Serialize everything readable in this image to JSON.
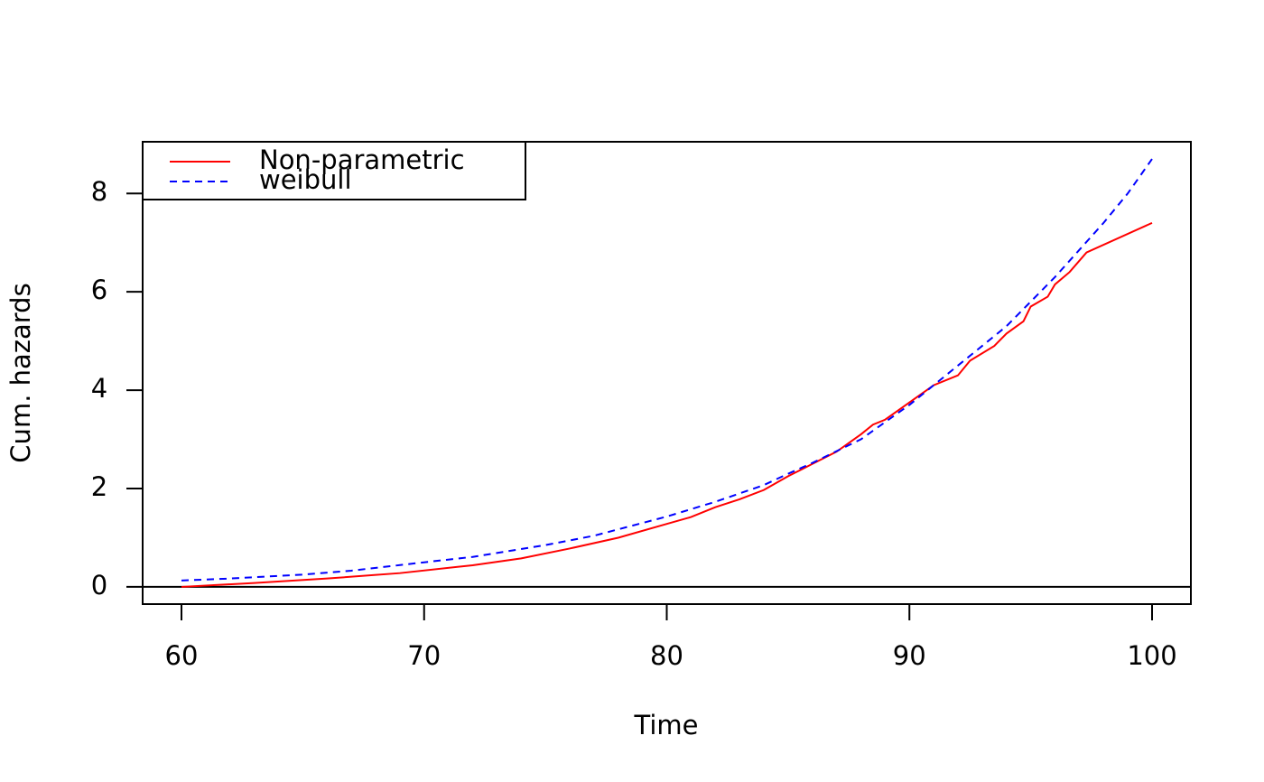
{
  "chart_data": {
    "type": "line",
    "xlabel": "Time",
    "ylabel": "Cum. hazards",
    "xlim": [
      58.4,
      101.6
    ],
    "ylim": [
      -0.35,
      9.05
    ],
    "xticks": [
      60,
      70,
      80,
      90,
      100
    ],
    "yticks": [
      0,
      2,
      4,
      6,
      8
    ],
    "hline": 0,
    "legend": "topleft",
    "series": [
      {
        "name": "Non-parametric",
        "color": "#ff0000",
        "linestyle": "solid",
        "x": [
          60,
          63,
          66,
          69,
          72,
          74,
          76,
          78,
          80,
          81,
          82,
          83,
          84,
          85,
          86,
          87,
          88,
          88.5,
          89,
          90,
          91,
          92,
          92.5,
          93.5,
          94,
          94.7,
          95,
          95.7,
          96,
          96.6,
          97.3,
          100
        ],
        "values": [
          0,
          0.08,
          0.17,
          0.28,
          0.44,
          0.58,
          0.78,
          1.0,
          1.28,
          1.42,
          1.62,
          1.78,
          1.97,
          2.25,
          2.5,
          2.75,
          3.1,
          3.3,
          3.4,
          3.75,
          4.1,
          4.3,
          4.6,
          4.9,
          5.15,
          5.4,
          5.7,
          5.9,
          6.15,
          6.4,
          6.8,
          7.4
        ]
      },
      {
        "name": "weibull",
        "color": "#0000ff",
        "linestyle": "dashed",
        "x": [
          60,
          62,
          65,
          67,
          70,
          72,
          75,
          77,
          80,
          82,
          84,
          85,
          86,
          88,
          90,
          92,
          93,
          94,
          95,
          96,
          97,
          98,
          99,
          100
        ],
        "values": [
          0.13,
          0.17,
          0.25,
          0.33,
          0.5,
          0.61,
          0.85,
          1.04,
          1.43,
          1.73,
          2.07,
          2.3,
          2.52,
          3.0,
          3.7,
          4.5,
          4.9,
          5.3,
          5.8,
          6.3,
          6.85,
          7.4,
          8.0,
          8.7
        ]
      }
    ]
  }
}
